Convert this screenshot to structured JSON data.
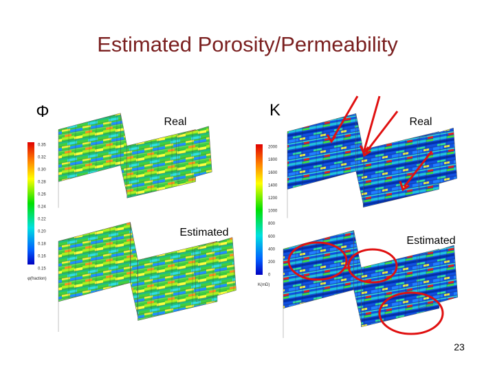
{
  "title": "Estimated Porosity/Permeability",
  "porosity": {
    "symbol": "Φ",
    "real_label": "Real",
    "estimated_label": "Estimated",
    "colorbar": {
      "ticks": [
        "0.35",
        "0.32",
        "0.30",
        "0.28",
        "0.26",
        "0.24",
        "0.22",
        "0.20",
        "0.18",
        "0.16",
        "0.15"
      ],
      "unit": "φ(fraction)"
    }
  },
  "permeability": {
    "symbol": "K",
    "real_label": "Real",
    "estimated_label": "Estimated",
    "colorbar": {
      "ticks": [
        "2000",
        "1800",
        "1600",
        "1400",
        "1200",
        "1000",
        "800",
        "600",
        "400",
        "200",
        "0"
      ],
      "unit": "K(mD)"
    }
  },
  "page_number": "23"
}
